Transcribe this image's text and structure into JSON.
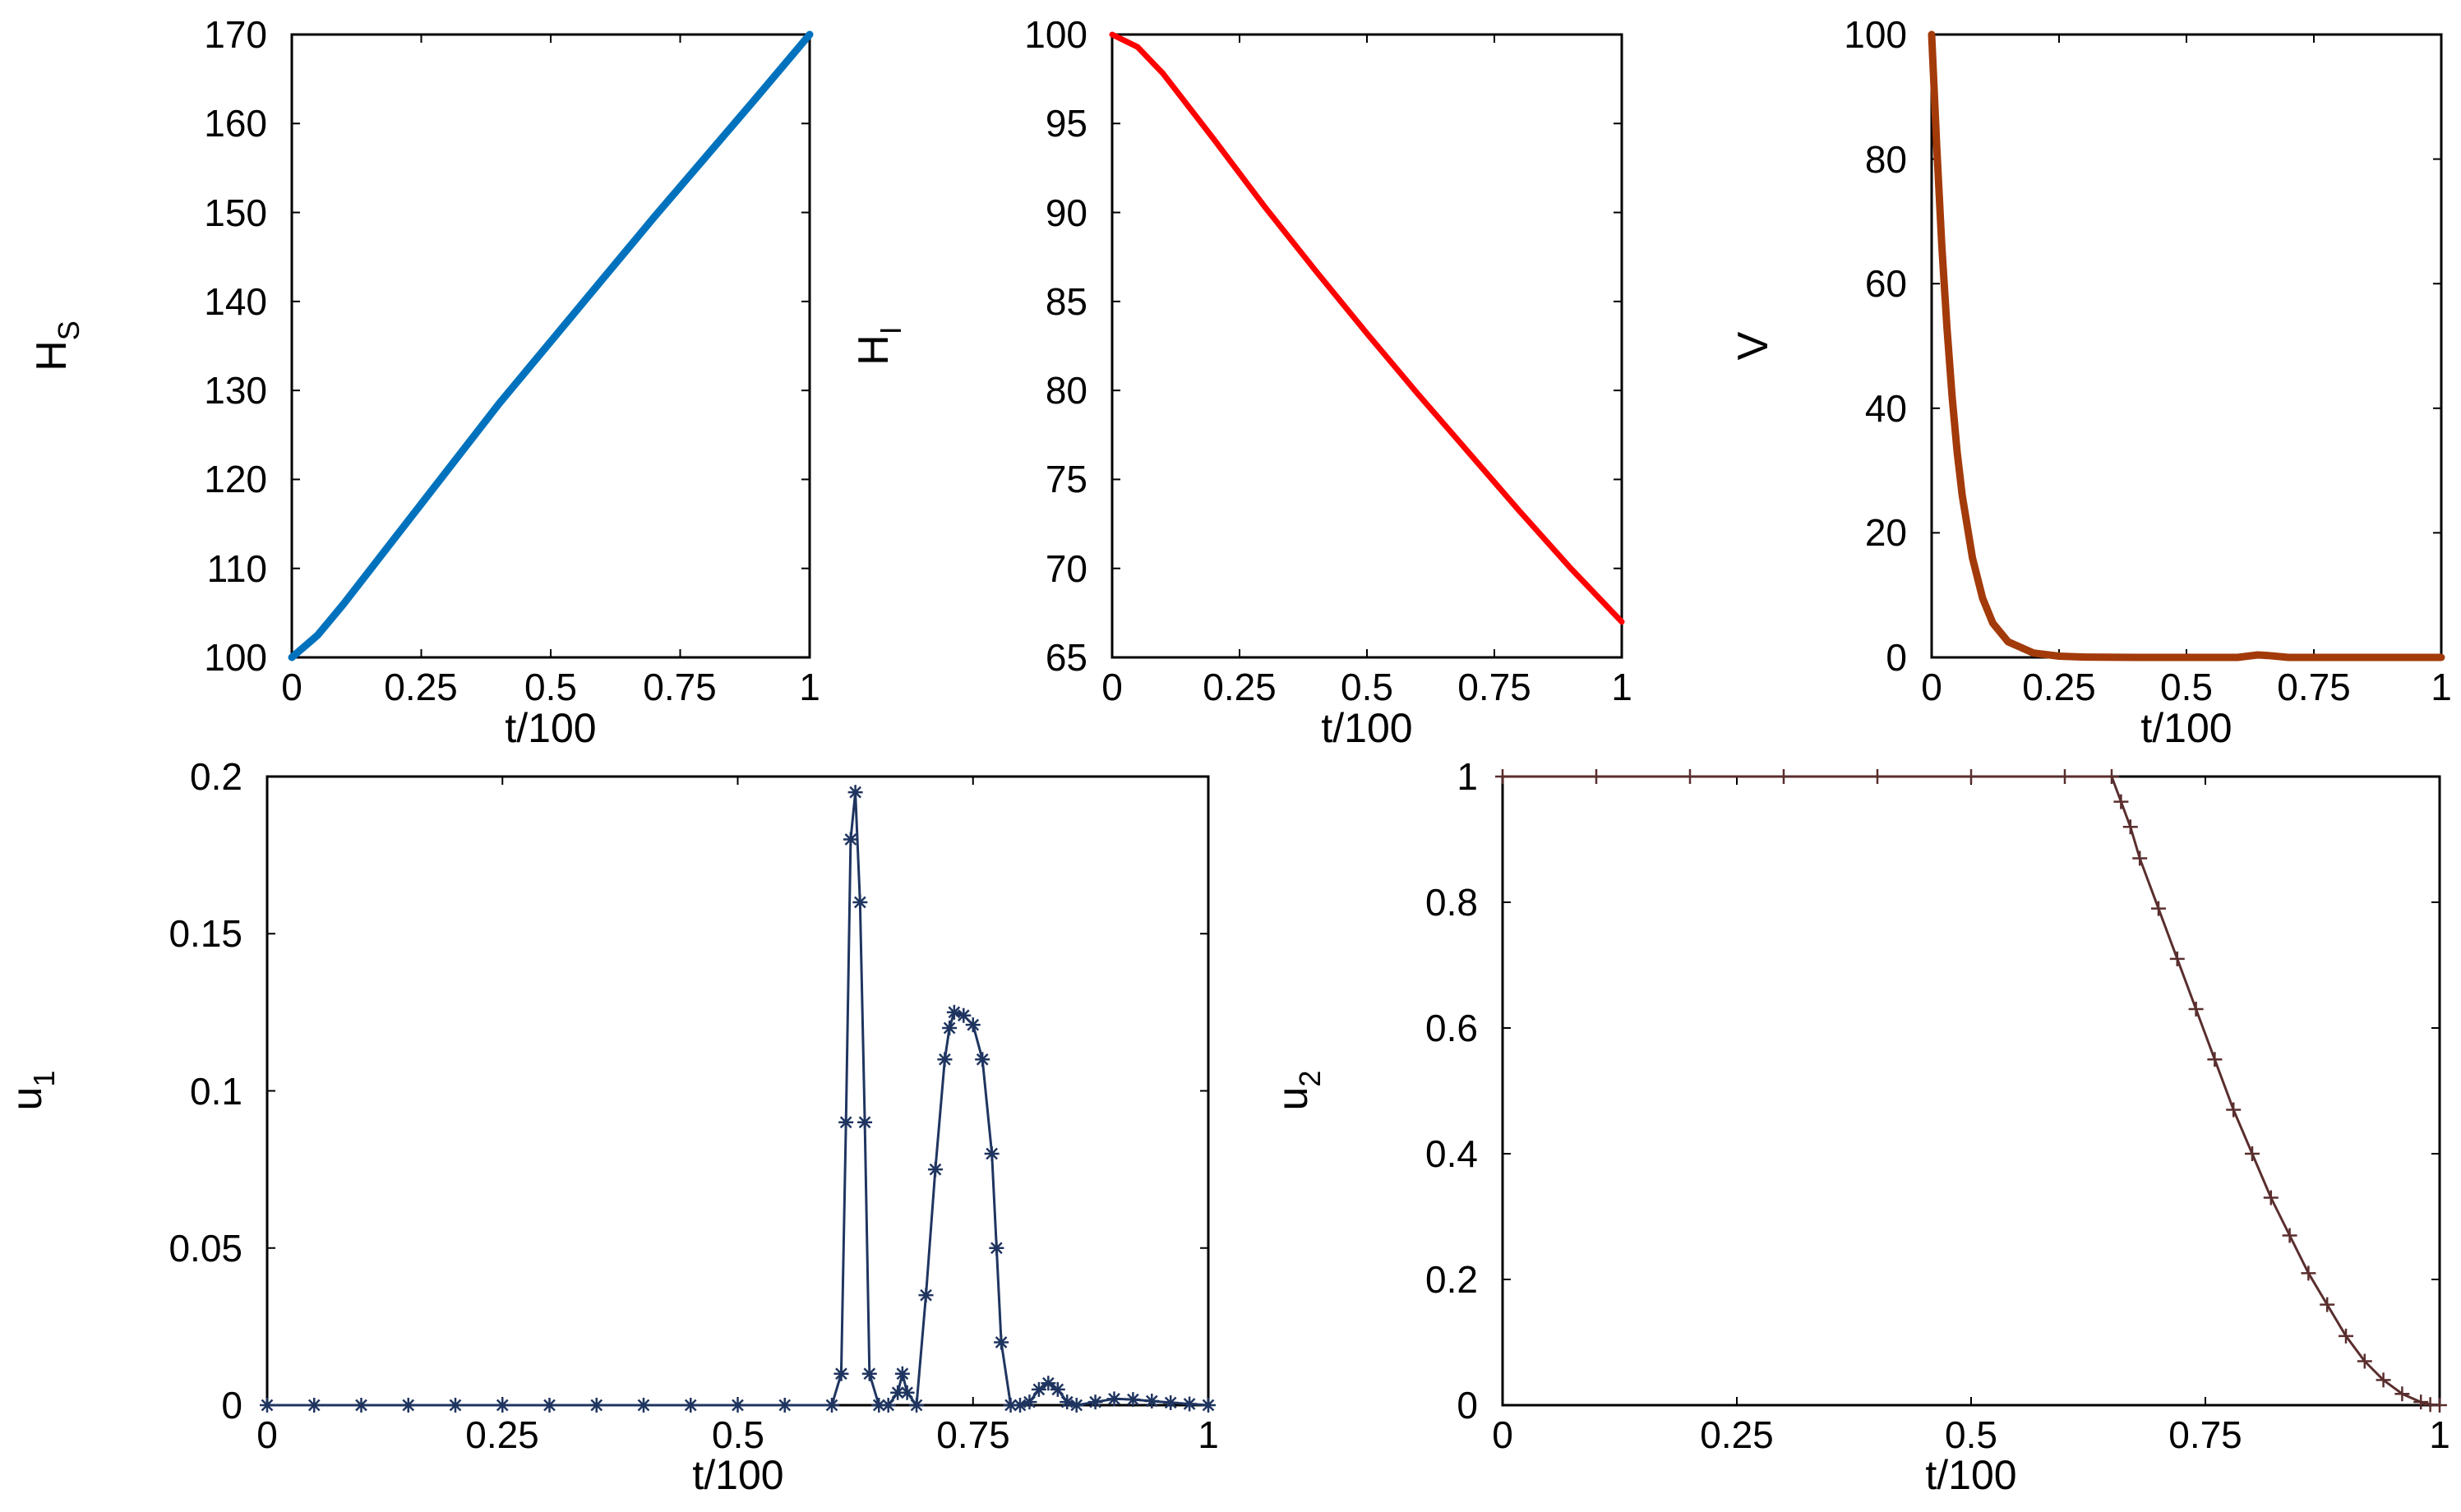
{
  "chart_data": [
    {
      "id": "hs",
      "type": "line",
      "ylabel": "H",
      "ylabel_sub": "S",
      "xlabel": "t/100",
      "xlim": [
        0,
        1
      ],
      "ylim": [
        100,
        170
      ],
      "xticks": [
        0,
        0.25,
        0.5,
        0.75,
        1
      ],
      "xtick_labels": [
        "0",
        "0.25",
        "0.5",
        "0.75",
        "1"
      ],
      "yticks": [
        100,
        110,
        120,
        130,
        140,
        150,
        160,
        170
      ],
      "ytick_labels": [
        "100",
        "110",
        "120",
        "130",
        "140",
        "150",
        "160",
        "170"
      ],
      "series": [
        {
          "name": "H_S",
          "color": "#0072bd",
          "marker": "none",
          "x": [
            0,
            0.05,
            0.1,
            0.2,
            0.3,
            0.4,
            0.5,
            0.6,
            0.7,
            0.8,
            0.9,
            1.0
          ],
          "y": [
            100,
            102.5,
            106,
            113.5,
            121,
            128.5,
            135.5,
            142.5,
            149.5,
            156.3,
            163.1,
            170
          ]
        }
      ]
    },
    {
      "id": "hi",
      "type": "line",
      "ylabel": "H",
      "ylabel_sub": "I",
      "xlabel": "t/100",
      "xlim": [
        0,
        1
      ],
      "ylim": [
        65,
        100
      ],
      "xticks": [
        0,
        0.25,
        0.5,
        0.75,
        1
      ],
      "xtick_labels": [
        "0",
        "0.25",
        "0.5",
        "0.75",
        "1"
      ],
      "yticks": [
        65,
        70,
        75,
        80,
        85,
        90,
        95,
        100
      ],
      "ytick_labels": [
        "65",
        "70",
        "75",
        "80",
        "85",
        "90",
        "95",
        "100"
      ],
      "series": [
        {
          "name": "H_I",
          "color": "#ff0000",
          "marker": "none",
          "x": [
            0,
            0.05,
            0.1,
            0.2,
            0.3,
            0.4,
            0.5,
            0.6,
            0.7,
            0.8,
            0.9,
            1.0
          ],
          "y": [
            100,
            99.3,
            97.8,
            94.1,
            90.3,
            86.7,
            83.2,
            79.8,
            76.5,
            73.2,
            70.0,
            67.0
          ]
        }
      ]
    },
    {
      "id": "v",
      "type": "line",
      "ylabel": "V",
      "ylabel_sub": "",
      "xlabel": "t/100",
      "xlim": [
        0,
        1
      ],
      "ylim": [
        0,
        100
      ],
      "xticks": [
        0,
        0.25,
        0.5,
        0.75,
        1
      ],
      "xtick_labels": [
        "0",
        "0.25",
        "0.5",
        "0.75",
        "1"
      ],
      "yticks": [
        0,
        20,
        40,
        60,
        80,
        100
      ],
      "ytick_labels": [
        "0",
        "20",
        "40",
        "60",
        "80",
        "100"
      ],
      "series": [
        {
          "name": "V",
          "color": "#a33a0a",
          "marker": "none",
          "x": [
            0,
            0.01,
            0.02,
            0.03,
            0.04,
            0.05,
            0.06,
            0.08,
            0.1,
            0.12,
            0.15,
            0.2,
            0.25,
            0.3,
            0.4,
            0.5,
            0.6,
            0.64,
            0.66,
            0.7,
            0.8,
            0.9,
            1.0
          ],
          "y": [
            100,
            82,
            66,
            53,
            42,
            33,
            26,
            16,
            9.5,
            5.5,
            2.5,
            0.7,
            0.2,
            0.05,
            0,
            0,
            0,
            0.4,
            0.3,
            0,
            0,
            0,
            0
          ]
        }
      ]
    },
    {
      "id": "u1",
      "type": "line",
      "ylabel": "u",
      "ylabel_sub": "1",
      "xlabel": "t/100",
      "xlim": [
        0,
        1
      ],
      "ylim": [
        0,
        0.2
      ],
      "xticks": [
        0,
        0.25,
        0.5,
        0.75,
        1
      ],
      "xtick_labels": [
        "0",
        "0.25",
        "0.5",
        "0.75",
        "1"
      ],
      "yticks": [
        0,
        0.05,
        0.1,
        0.15,
        0.2
      ],
      "ytick_labels": [
        "0",
        "0.05",
        "0.1",
        "0.15",
        "0.2"
      ],
      "series": [
        {
          "name": "u_1",
          "color": "#1f3560",
          "marker": "asterisk",
          "x": [
            0,
            0.05,
            0.1,
            0.15,
            0.2,
            0.25,
            0.3,
            0.35,
            0.4,
            0.45,
            0.5,
            0.55,
            0.6,
            0.61,
            0.615,
            0.62,
            0.625,
            0.63,
            0.635,
            0.64,
            0.65,
            0.66,
            0.67,
            0.675,
            0.68,
            0.69,
            0.7,
            0.71,
            0.72,
            0.725,
            0.73,
            0.74,
            0.75,
            0.76,
            0.77,
            0.775,
            0.78,
            0.79,
            0.8,
            0.81,
            0.82,
            0.83,
            0.84,
            0.85,
            0.86,
            0.88,
            0.9,
            0.92,
            0.94,
            0.96,
            0.98,
            1.0
          ],
          "y": [
            0,
            0,
            0,
            0,
            0,
            0,
            0,
            0,
            0,
            0,
            0,
            0,
            0,
            0.01,
            0.09,
            0.18,
            0.195,
            0.16,
            0.09,
            0.01,
            0,
            0,
            0.004,
            0.01,
            0.004,
            0,
            0.035,
            0.075,
            0.11,
            0.12,
            0.125,
            0.124,
            0.121,
            0.11,
            0.08,
            0.05,
            0.02,
            0,
            0,
            0.001,
            0.005,
            0.007,
            0.005,
            0.001,
            0,
            0.001,
            0.002,
            0.0018,
            0.0013,
            0.0008,
            0.0004,
            0
          ]
        }
      ]
    },
    {
      "id": "u2",
      "type": "line",
      "ylabel": "u",
      "ylabel_sub": "2",
      "xlabel": "t/100",
      "xlim": [
        0,
        1
      ],
      "ylim": [
        0,
        1
      ],
      "xticks": [
        0,
        0.25,
        0.5,
        0.75,
        1
      ],
      "xtick_labels": [
        "0",
        "0.25",
        "0.5",
        "0.75",
        "1"
      ],
      "yticks": [
        0,
        0.2,
        0.4,
        0.6,
        0.8,
        1
      ],
      "ytick_labels": [
        "0",
        "0.2",
        "0.4",
        "0.6",
        "0.8",
        "1"
      ],
      "series": [
        {
          "name": "u_2",
          "color": "#5a2e2e",
          "marker": "plus",
          "x": [
            0,
            0.1,
            0.2,
            0.3,
            0.4,
            0.5,
            0.6,
            0.65,
            0.66,
            0.67,
            0.68,
            0.7,
            0.72,
            0.74,
            0.76,
            0.78,
            0.8,
            0.82,
            0.84,
            0.86,
            0.88,
            0.9,
            0.92,
            0.94,
            0.96,
            0.98,
            0.99,
            1.0
          ],
          "y": [
            1,
            1,
            1,
            1,
            1,
            1,
            1,
            1,
            0.96,
            0.92,
            0.87,
            0.79,
            0.71,
            0.63,
            0.55,
            0.47,
            0.4,
            0.33,
            0.27,
            0.21,
            0.16,
            0.11,
            0.07,
            0.04,
            0.018,
            0.005,
            0.001,
            0
          ]
        }
      ]
    }
  ]
}
